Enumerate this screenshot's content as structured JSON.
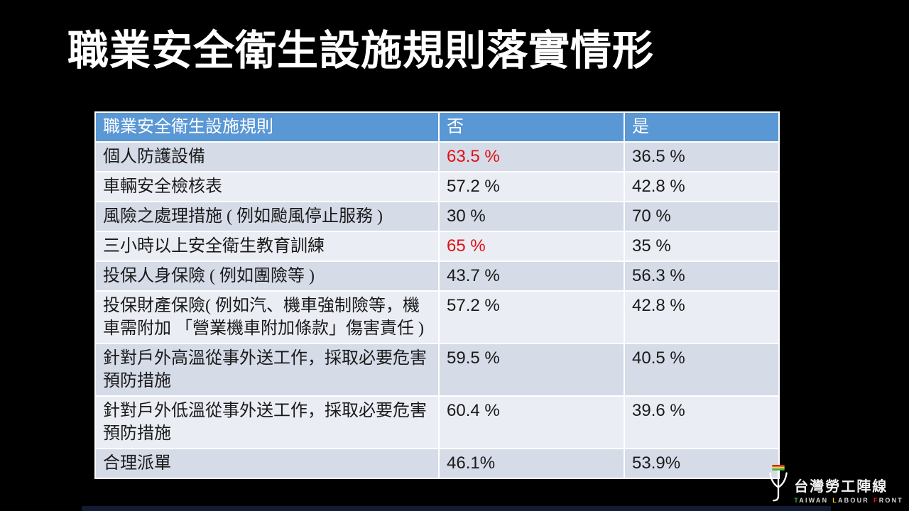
{
  "slide": {
    "title": "職業安全衛生設施規則落實情形"
  },
  "table": {
    "headers": [
      "職業安全衛生設施規則",
      "否",
      "是"
    ],
    "rows": [
      {
        "label": "個人防護設備",
        "no": "63.5 %",
        "yes": "36.5 %",
        "no_highlight": true
      },
      {
        "label": "車輛安全檢核表",
        "no": "57.2 %",
        "yes": "42.8 %",
        "no_highlight": false
      },
      {
        "label": "風險之處理措施 ( 例如颱風停止服務 )",
        "no": "30 %",
        "yes": "70 %",
        "no_highlight": false
      },
      {
        "label": "三小時以上安全衛生教育訓練",
        "no": "65 %",
        "yes": "35 %",
        "no_highlight": true
      },
      {
        "label": "投保人身保險 ( 例如團險等 )",
        "no": "43.7 %",
        "yes": "56.3 %",
        "no_highlight": false
      },
      {
        "label": "投保財產保險( 例如汽、機車強制險等，機車需附加 「營業機車附加條款」傷害責任 )",
        "no": "57.2 %",
        "yes": "42.8 %",
        "no_highlight": false
      },
      {
        "label": "針對戶外高溫從事外送工作，採取必要危害預防措施",
        "no": "59.5 %",
        "yes": "40.5 %",
        "no_highlight": false
      },
      {
        "label": "針對戶外低溫從事外送工作，採取必要危害預防措施",
        "no": "60.4 %",
        "yes": "39.6 %",
        "no_highlight": false
      },
      {
        "label": "合理派單",
        "no": "46.1%",
        "yes": "53.9%",
        "no_highlight": false
      }
    ]
  },
  "logo": {
    "symbol": "whip-psi-icon",
    "chinese": "台灣勞工陣線",
    "english_words": [
      "TAIWAN",
      "LABOUR",
      "FRONT"
    ],
    "initial_colors": [
      "#3fae49",
      "#f2d03a",
      "#ed1c24"
    ],
    "flag_stripe_colors": [
      "#d42b26",
      "#f2d03a",
      "#3fae49"
    ]
  },
  "colors": {
    "header_blue": "#5997D5",
    "band_dark": "#D6DBE8",
    "band_light": "#EBEDF4",
    "highlight_red": "#DF1111",
    "text_dark": "#1a1a1a",
    "bottom_bar_navy": "#111B33"
  },
  "chart_data": {
    "type": "table",
    "title": "職業安全衛生設施規則落實情形",
    "columns": [
      "職業安全衛生設施規則",
      "否",
      "是"
    ],
    "rows": [
      [
        "個人防護設備",
        "63.5 %",
        "36.5 %"
      ],
      [
        "車輛安全檢核表",
        "57.2 %",
        "42.8 %"
      ],
      [
        "風險之處理措施 ( 例如颱風停止服務 )",
        "30 %",
        "70 %"
      ],
      [
        "三小時以上安全衛生教育訓練",
        "65 %",
        "35 %"
      ],
      [
        "投保人身保險 ( 例如團險等 )",
        "43.7 %",
        "56.3 %"
      ],
      [
        "投保財產保險( 例如汽、機車強制險等，機車需附加 「營業機車附加條款」傷害責任 )",
        "57.2 %",
        "42.8 %"
      ],
      [
        "針對戶外高溫從事外送工作，採取必要危害預防措施",
        "59.5 %",
        "40.5 %"
      ],
      [
        "針對戶外低溫從事外送工作，採取必要危害預防措施",
        "60.4 %",
        "39.6 %"
      ],
      [
        "合理派單",
        "46.1%",
        "53.9%"
      ]
    ],
    "notes": "values in 否 column for rows 1 and 4 are highlighted red"
  }
}
